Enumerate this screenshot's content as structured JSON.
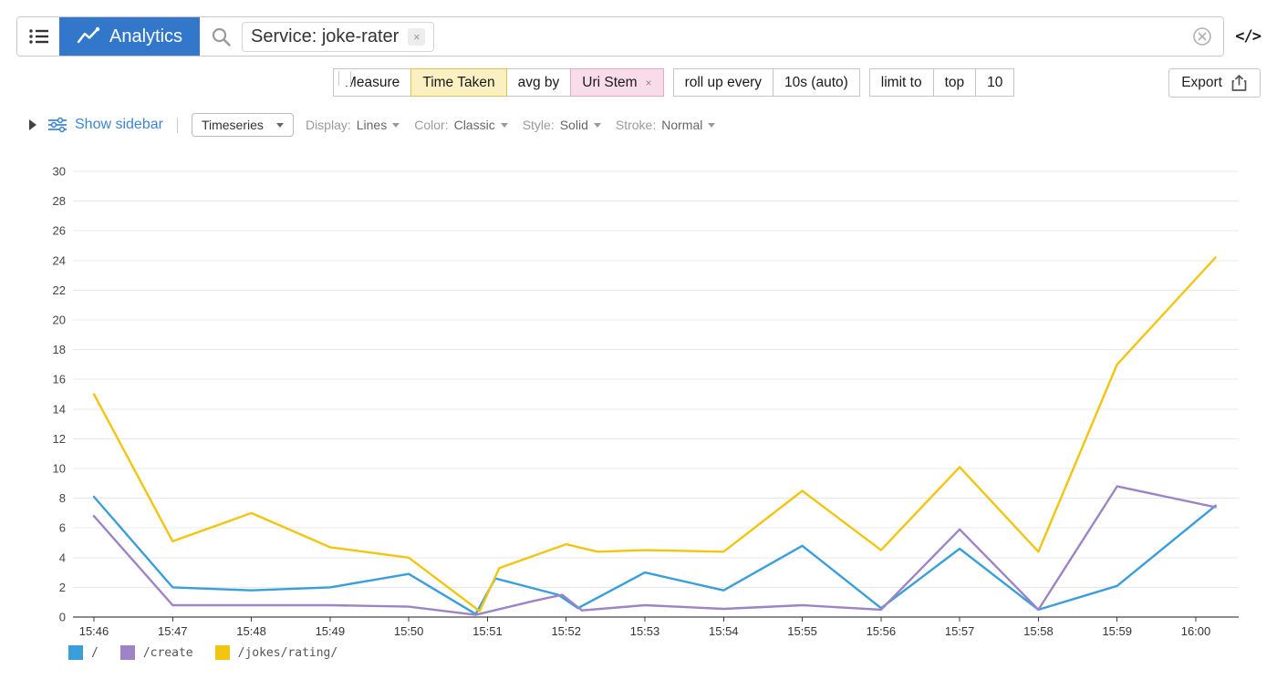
{
  "topbar": {
    "app_name": "Analytics",
    "filter_tag": "Service: joke-rater"
  },
  "icons": {
    "close_glyph": "×",
    "code_glyph": "</>"
  },
  "query_row": {
    "measure_label": "Measure",
    "measure_value": "Time Taken",
    "avg_by_label": "avg by",
    "avg_by_value": "Uri Stem",
    "rollup_label": "roll up every",
    "rollup_value": "10s (auto)",
    "limit_label": "limit to",
    "limit_mode": "top",
    "limit_value": "10",
    "export_label": "Export"
  },
  "controls_row": {
    "show_sidebar": "Show sidebar",
    "view_type": "Timeseries",
    "display_label": "Display:",
    "display_value": "Lines",
    "color_label": "Color:",
    "color_value": "Classic",
    "style_label": "Style:",
    "style_value": "Solid",
    "stroke_label": "Stroke:",
    "stroke_value": "Normal"
  },
  "colors": {
    "accent_blue": "#3377cb",
    "link_blue": "#3e86cf",
    "measure_pill_bg": "#fbf0c2",
    "groupby_pill_bg": "#f8dcea"
  },
  "chart_data": {
    "type": "line",
    "title": "",
    "xlabel": "",
    "ylabel": "",
    "ylim": [
      0,
      30
    ],
    "ytick_step": 2,
    "grid": true,
    "legend_position": "bottom-left",
    "x_unit": "minutes after 15:46",
    "x_tick_labels": [
      "15:46",
      "15:47",
      "15:48",
      "15:49",
      "15:50",
      "15:51",
      "15:52",
      "15:53",
      "15:54",
      "15:55",
      "15:56",
      "15:57",
      "15:58",
      "15:59",
      "16:00"
    ],
    "series": [
      {
        "name": "/",
        "color": "#3a9fd9",
        "points": [
          [
            0,
            8.1
          ],
          [
            1,
            2.0
          ],
          [
            2,
            1.8
          ],
          [
            3,
            2.0
          ],
          [
            4,
            2.9
          ],
          [
            4.85,
            0.2
          ],
          [
            5.1,
            2.6
          ],
          [
            5.9,
            1.5
          ],
          [
            6.15,
            0.6
          ],
          [
            7,
            3.0
          ],
          [
            8,
            1.8
          ],
          [
            9,
            4.8
          ],
          [
            10,
            0.6
          ],
          [
            11,
            4.6
          ],
          [
            12,
            0.5
          ],
          [
            13,
            2.1
          ],
          [
            14.25,
            7.5
          ]
        ]
      },
      {
        "name": "/create",
        "color": "#9c84c5",
        "points": [
          [
            0,
            6.8
          ],
          [
            1,
            0.8
          ],
          [
            2,
            0.8
          ],
          [
            3,
            0.8
          ],
          [
            4,
            0.7
          ],
          [
            4.85,
            0.15
          ],
          [
            5.6,
            1.1
          ],
          [
            5.95,
            1.5
          ],
          [
            6.2,
            0.45
          ],
          [
            7,
            0.8
          ],
          [
            8,
            0.55
          ],
          [
            9,
            0.8
          ],
          [
            10,
            0.5
          ],
          [
            11,
            5.9
          ],
          [
            12,
            0.5
          ],
          [
            13,
            8.8
          ],
          [
            14.25,
            7.4
          ]
        ]
      },
      {
        "name": "/jokes/rating/",
        "color": "#f2c511",
        "points": [
          [
            0,
            15.0
          ],
          [
            1,
            5.1
          ],
          [
            2,
            7.0
          ],
          [
            3,
            4.7
          ],
          [
            4,
            4.0
          ],
          [
            4.9,
            0.4
          ],
          [
            5.15,
            3.3
          ],
          [
            6,
            4.9
          ],
          [
            6.4,
            4.4
          ],
          [
            7,
            4.5
          ],
          [
            8,
            4.4
          ],
          [
            9,
            8.5
          ],
          [
            10,
            4.5
          ],
          [
            11,
            10.1
          ],
          [
            12,
            4.4
          ],
          [
            13,
            17.0
          ],
          [
            14.25,
            24.2
          ]
        ]
      }
    ]
  }
}
